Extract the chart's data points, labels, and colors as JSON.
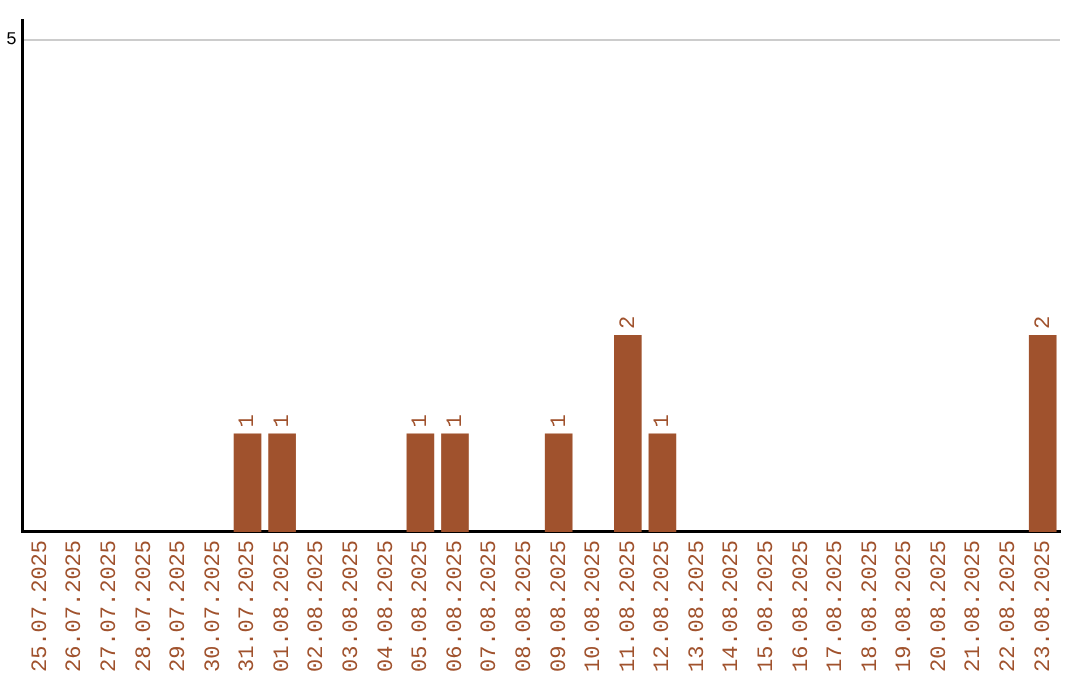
{
  "chart_data": {
    "type": "bar",
    "categories": [
      "25.07.2025",
      "26.07.2025",
      "27.07.2025",
      "28.07.2025",
      "29.07.2025",
      "30.07.2025",
      "31.07.2025",
      "01.08.2025",
      "02.08.2025",
      "03.08.2025",
      "04.08.2025",
      "05.08.2025",
      "06.08.2025",
      "07.08.2025",
      "08.08.2025",
      "09.08.2025",
      "10.08.2025",
      "11.08.2025",
      "12.08.2025",
      "13.08.2025",
      "14.08.2025",
      "15.08.2025",
      "16.08.2025",
      "17.08.2025",
      "18.08.2025",
      "19.08.2025",
      "20.08.2025",
      "21.08.2025",
      "22.08.2025",
      "23.08.2025"
    ],
    "values": [
      0,
      0,
      0,
      0,
      0,
      0,
      1,
      1,
      0,
      0,
      0,
      1,
      1,
      0,
      0,
      1,
      0,
      2,
      1,
      0,
      0,
      0,
      0,
      0,
      0,
      0,
      0,
      0,
      0,
      2
    ],
    "value_labels": [
      null,
      null,
      null,
      null,
      null,
      null,
      "1",
      "1",
      null,
      null,
      null,
      "1",
      "1",
      null,
      null,
      "1",
      null,
      "2",
      "1",
      null,
      null,
      null,
      null,
      null,
      null,
      null,
      null,
      null,
      null,
      "2"
    ],
    "color": "#a0522d",
    "ylim": [
      0,
      5.2
    ],
    "yticks": [
      5
    ],
    "grid": "y",
    "legend": false
  }
}
